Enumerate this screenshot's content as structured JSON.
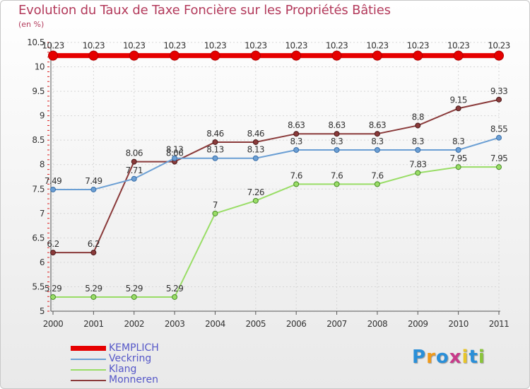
{
  "header": {
    "title": "Evolution du Taux de Taxe Foncière sur les Propriétés Bâties",
    "subtitle": "(en %)"
  },
  "chart_data": {
    "type": "line",
    "title": "Evolution du Taux de Taxe Foncière sur les Propriétés Bâties",
    "ylabel": "(en %)",
    "xlabel": "",
    "ylim": [
      5,
      10.5
    ],
    "y_ticks": [
      5,
      5.5,
      6,
      6.5,
      7,
      7.5,
      8,
      8.5,
      9,
      9.5,
      10,
      10.5
    ],
    "y_tick_labels": [
      "5",
      "5.5",
      "6",
      "6.5",
      "7",
      "7.5",
      "8",
      "8.5",
      "9",
      "9.5",
      "10",
      "10.5"
    ],
    "categories": [
      "2000",
      "2001",
      "2002",
      "2003",
      "2004",
      "2005",
      "2006",
      "2007",
      "2008",
      "2009",
      "2010",
      "2011"
    ],
    "legend_position": "bottom-left",
    "series": [
      {
        "name": "KEMPLICH",
        "color": "#e60000",
        "values": [
          10.23,
          10.23,
          10.23,
          10.23,
          10.23,
          10.23,
          10.23,
          10.23,
          10.23,
          10.23,
          10.23,
          10.23
        ],
        "labels": [
          "10.23",
          "10.23",
          "10.23",
          "10.23",
          "10.23",
          "10.23",
          "10.23",
          "10.23",
          "10.23",
          "10.23",
          "10.23",
          "10.23"
        ]
      },
      {
        "name": "Veckring",
        "color": "#6b9fd4",
        "values": [
          7.49,
          7.49,
          7.71,
          8.13,
          8.13,
          8.13,
          8.3,
          8.3,
          8.3,
          8.3,
          8.3,
          8.55
        ],
        "labels": [
          "7.49",
          "7.49",
          "7.71",
          "8.13",
          "8.13",
          "8.13",
          "8.3",
          "8.3",
          "8.3",
          "8.3",
          "8.3",
          "8.55"
        ]
      },
      {
        "name": "Klang",
        "color": "#99dd66",
        "values": [
          5.29,
          5.29,
          5.29,
          5.29,
          7,
          7.26,
          7.6,
          7.6,
          7.6,
          7.83,
          7.95,
          7.95
        ],
        "labels": [
          "5.29",
          "5.29",
          "5.29",
          "5.29",
          "7",
          "7.26",
          "7.6",
          "7.6",
          "7.6",
          "7.83",
          "7.95",
          "7.95"
        ]
      },
      {
        "name": "Monneren",
        "color": "#8a3a3a",
        "values": [
          6.2,
          6.2,
          8.06,
          8.06,
          8.46,
          8.46,
          8.63,
          8.63,
          8.63,
          8.8,
          9.15,
          9.33
        ],
        "labels": [
          "6.2",
          "6.2",
          "8.06",
          "8.06",
          "8.46",
          "8.46",
          "8.63",
          "8.63",
          "8.63",
          "8.8",
          "9.15",
          "9.33"
        ]
      }
    ]
  },
  "brand": {
    "letters": [
      "P",
      "r",
      "o",
      "x",
      "i",
      "t",
      "i"
    ],
    "colors": [
      "#2a8fd8",
      "#f09a1a",
      "#2a8fd8",
      "#c83a8a",
      "#e8c52a",
      "#2a8fd8",
      "#8ac43a"
    ]
  }
}
